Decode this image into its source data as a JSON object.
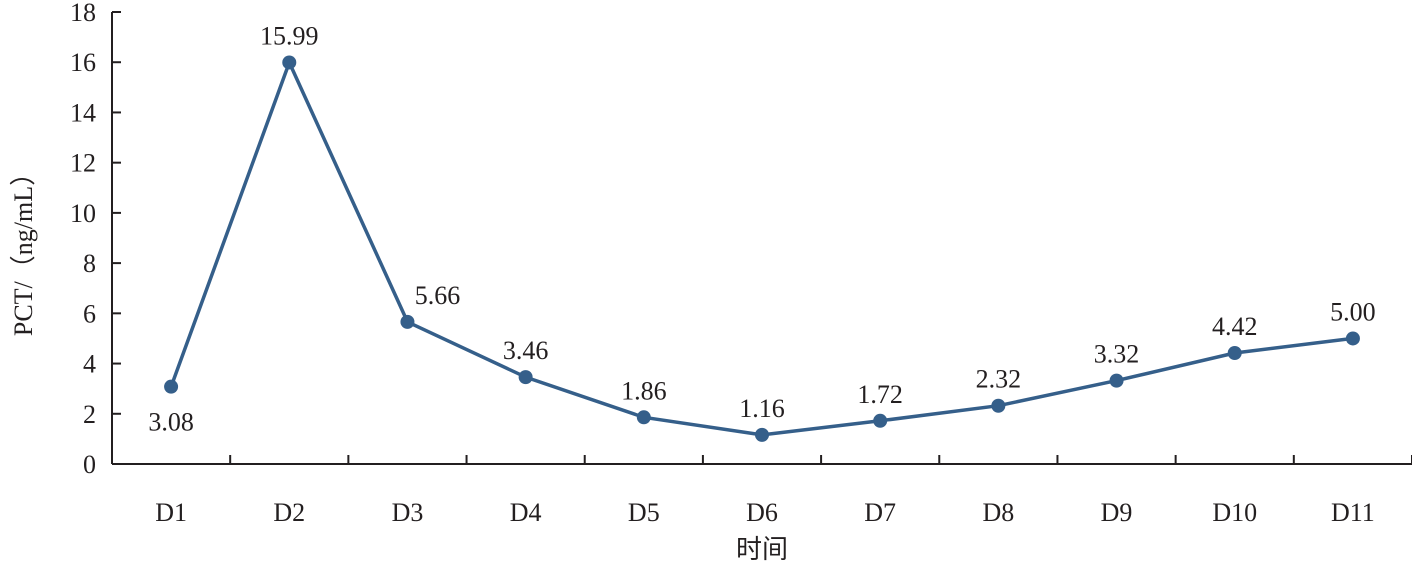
{
  "chart_data": {
    "type": "line",
    "categories": [
      "D1",
      "D2",
      "D3",
      "D4",
      "D5",
      "D6",
      "D7",
      "D8",
      "D9",
      "D10",
      "D11"
    ],
    "series": [
      {
        "values": [
          3.08,
          15.99,
          5.66,
          3.46,
          1.86,
          1.16,
          1.72,
          2.32,
          3.32,
          4.42,
          5.0
        ]
      }
    ],
    "data_labels": [
      "3.08",
      "15.99",
      "5.66",
      "3.46",
      "1.86",
      "1.16",
      "1.72",
      "2.32",
      "3.32",
      "4.42",
      "5.00"
    ],
    "xlabel": "时间",
    "ylabel": "PCT/（ng/mL）",
    "ylim": [
      0,
      18
    ],
    "yticks": [
      "0",
      "2",
      "4",
      "6",
      "8",
      "10",
      "12",
      "14",
      "16",
      "18"
    ],
    "grid": false,
    "colors": {
      "line": "#355f8a",
      "axis": "#231f20"
    }
  }
}
